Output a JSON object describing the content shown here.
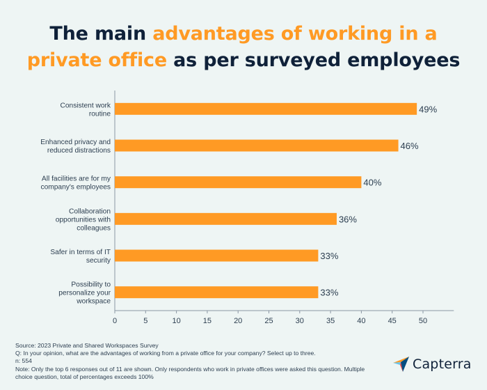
{
  "title": {
    "part1": "The main ",
    "part2": "advantages of working in a",
    "part3": "private office",
    "part4": " as per surveyed employees"
  },
  "colors": {
    "bar": "#ff9a24",
    "accent": "#ff9a24",
    "title": "#0f2139",
    "background": "#eef5f4"
  },
  "chart_data": {
    "type": "bar",
    "orientation": "horizontal",
    "categories": [
      [
        "Consistent work",
        "routine"
      ],
      [
        "Enhanced privacy and",
        "reduced distractions"
      ],
      [
        "All facilities are for my",
        "company's employees"
      ],
      [
        "Collaboration",
        "opportunities with",
        "colleagues"
      ],
      [
        "Safer in terms of IT",
        "security"
      ],
      [
        "Possibility to",
        "personalize your",
        "workspace"
      ]
    ],
    "values": [
      49,
      46,
      40,
      36,
      33,
      33
    ],
    "value_labels": [
      "49%",
      "46%",
      "40%",
      "36%",
      "33%",
      "33%"
    ],
    "xlim": [
      0,
      55
    ],
    "xticks": [
      0,
      5,
      10,
      15,
      20,
      25,
      30,
      35,
      40,
      45,
      50
    ],
    "grid": false
  },
  "footer": {
    "source": "Source: 2023 Private and Shared Workspaces Survey",
    "question": "Q: In your opinion, what are the advantages of working from a private office for your company? Select up to three.",
    "n": "n: 554",
    "note": "Note: Only the top 6 responses out of 11 are shown. Only respondents who work in private offices were asked this question. Multiple choice question, total of percentages exceeds 100%"
  },
  "logo": {
    "text": "Capterra",
    "icon": "capterra-arrow-icon"
  }
}
